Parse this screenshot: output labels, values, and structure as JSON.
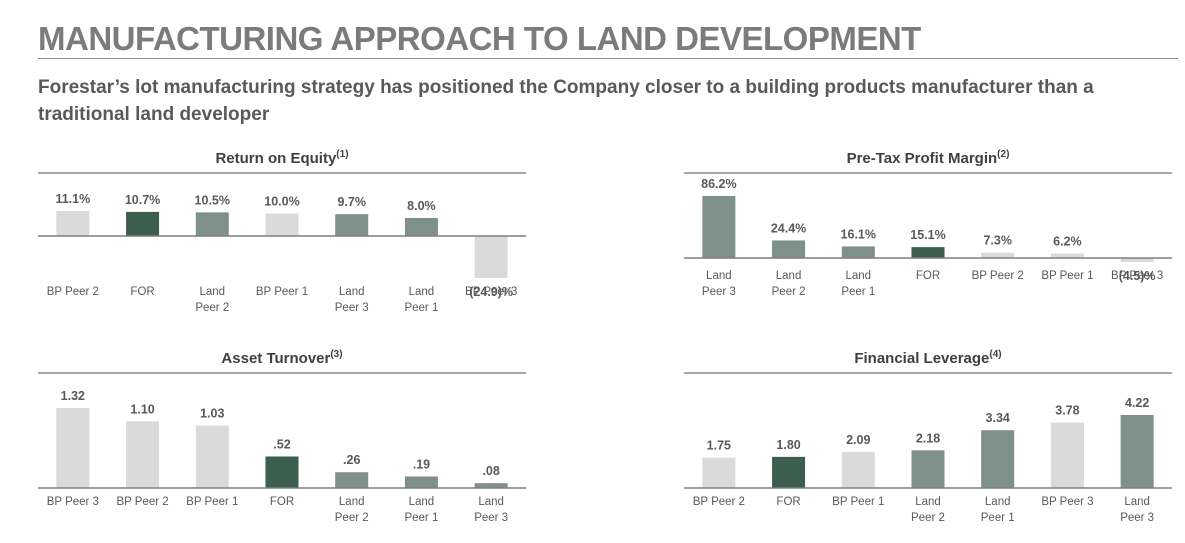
{
  "page": {
    "title": "MANUFACTURING APPROACH TO LAND DEVELOPMENT",
    "subtitle": "Forestar’s lot manufacturing strategy has positioned the Company closer to a building products manufacturer than a traditional land developer"
  },
  "colors": {
    "bp_peer": "#dadada",
    "land_peer": "#7f8f8a",
    "forestar": "#3b5e4f",
    "title_gray": "#7b7b7b",
    "subtitle_gray": "#595959"
  },
  "chart_data": [
    {
      "type": "bar",
      "title": "Return on Equity",
      "title_note": "(1)",
      "categories": [
        "BP Peer 2",
        "FOR",
        "Land Peer 2",
        "BP Peer 1",
        "Land Peer 3",
        "Land Peer 1",
        "BP Peer 3"
      ],
      "values": [
        11.1,
        10.7,
        10.5,
        10.0,
        9.7,
        8.0,
        -24.9
      ],
      "labels": [
        "11.1%",
        "10.7%",
        "10.5%",
        "10.0%",
        "9.7%",
        "8.0%",
        "(24.9)%"
      ],
      "groups": [
        "bp",
        "for",
        "land",
        "bp",
        "land",
        "land",
        "bp"
      ],
      "unit": "%",
      "ylim": [
        -24.9,
        11.1
      ],
      "grid": false,
      "legend": "none"
    },
    {
      "type": "bar",
      "title": "Pre-Tax Profit Margin",
      "title_note": "(2)",
      "categories": [
        "Land Peer 3",
        "Land Peer 2",
        "Land Peer 1",
        "FOR",
        "BP Peer 2",
        "BP Peer 1",
        "BP Peer 3"
      ],
      "values": [
        86.2,
        24.4,
        16.1,
        15.1,
        7.3,
        6.2,
        -4.5
      ],
      "labels": [
        "86.2%",
        "24.4%",
        "16.1%",
        "15.1%",
        "7.3%",
        "6.2%",
        "(4.5)%"
      ],
      "groups": [
        "land",
        "land",
        "land",
        "for",
        "bp",
        "bp",
        "bp"
      ],
      "unit": "%",
      "ylim": [
        -4.5,
        86.2
      ],
      "grid": false,
      "legend": "none"
    },
    {
      "type": "bar",
      "title": "Asset Turnover",
      "title_note": "(3)",
      "categories": [
        "BP Peer 3",
        "BP Peer 2",
        "BP Peer 1",
        "FOR",
        "Land Peer 2",
        "Land Peer 1",
        "Land Peer 3"
      ],
      "values": [
        1.32,
        1.1,
        1.03,
        0.52,
        0.26,
        0.19,
        0.08
      ],
      "labels": [
        "1.32",
        "1.10",
        "1.03",
        ".52",
        ".26",
        ".19",
        ".08"
      ],
      "groups": [
        "bp",
        "bp",
        "bp",
        "for",
        "land",
        "land",
        "land"
      ],
      "ylim": [
        0,
        1.32
      ],
      "grid": false,
      "legend": "none"
    },
    {
      "type": "bar",
      "title": "Financial Leverage",
      "title_note": "(4)",
      "categories": [
        "BP Peer 2",
        "FOR",
        "BP Peer 1",
        "Land Peer 2",
        "Land Peer 1",
        "BP Peer 3",
        "Land Peer 3"
      ],
      "values": [
        1.75,
        1.8,
        2.09,
        2.18,
        3.34,
        3.78,
        4.22
      ],
      "labels": [
        "1.75",
        "1.80",
        "2.09",
        "2.18",
        "3.34",
        "3.78",
        "4.22"
      ],
      "groups": [
        "bp",
        "for",
        "bp",
        "land",
        "land",
        "bp",
        "land"
      ],
      "ylim": [
        0,
        4.22
      ],
      "grid": false,
      "legend": "none"
    }
  ]
}
